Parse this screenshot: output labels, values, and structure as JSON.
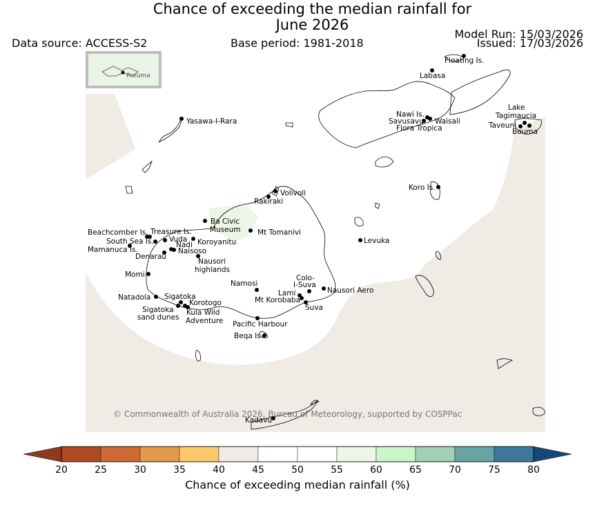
{
  "title_line1": "Chance of exceeding the median rainfall for",
  "title_line2": "June 2026",
  "data_source": "Data source: ACCESS-S2",
  "base_period": "Base period: 1981-2018",
  "model_run": "Model Run: 15/03/2026",
  "issued": "Issued: 17/03/2026",
  "inset_label": "Rotuma",
  "copyright": "© Commonwealth of Australia 2026, Bureau of Meteorology, supported by COSPPac",
  "places": [
    {
      "name": "Floating Is."
    },
    {
      "name": "Labasa"
    },
    {
      "name": "Yasawa-I-Rara"
    },
    {
      "name": "Nawi Is."
    },
    {
      "name": "Savusavu"
    },
    {
      "name": "Waisali"
    },
    {
      "name": "Flora Tropica"
    },
    {
      "name": "Lake"
    },
    {
      "name": "Tagimaucia"
    },
    {
      "name": "Taveuni"
    },
    {
      "name": "Bouma"
    },
    {
      "name": "Koro Is."
    },
    {
      "name": "Volivoli"
    },
    {
      "name": "Rakiraki"
    },
    {
      "name": "Ba Civic"
    },
    {
      "name": "Museum"
    },
    {
      "name": "Mt Tomanivi"
    },
    {
      "name": "Levuka"
    },
    {
      "name": "Beachcomber Is."
    },
    {
      "name": "Treasure Is."
    },
    {
      "name": "South Sea Is."
    },
    {
      "name": "Vuda"
    },
    {
      "name": "Koroyanitu"
    },
    {
      "name": "Mamanuca Is."
    },
    {
      "name": "Nadi"
    },
    {
      "name": "Denarau"
    },
    {
      "name": "Naisoso"
    },
    {
      "name": "Nausori"
    },
    {
      "name": "highlands"
    },
    {
      "name": "Momi"
    },
    {
      "name": "Namosi"
    },
    {
      "name": "Colo-"
    },
    {
      "name": "I-Suva"
    },
    {
      "name": "Nausori Aero"
    },
    {
      "name": "Natadola"
    },
    {
      "name": "Sigatoka"
    },
    {
      "name": "Lami"
    },
    {
      "name": "Mt Korobaba"
    },
    {
      "name": "Korotogo"
    },
    {
      "name": "Suva"
    },
    {
      "name": "Sigatoka"
    },
    {
      "name": "sand dunes"
    },
    {
      "name": "Kula Wild"
    },
    {
      "name": "Adventure"
    },
    {
      "name": "Pacific Harbour"
    },
    {
      "name": "Beqa Is."
    },
    {
      "name": "Kadavu"
    }
  ],
  "colorbar": {
    "title": "Chance of exceeding median rainfall (%)",
    "ticks": [
      "20",
      "25",
      "30",
      "35",
      "40",
      "45",
      "50",
      "55",
      "60",
      "65",
      "70",
      "75",
      "80"
    ],
    "under_color": "#8c3b1e",
    "over_color": "#15487a",
    "colors": [
      "#b04a25",
      "#cf6a35",
      "#e39a48",
      "#fdc96a",
      "#f0ebe4",
      "#ffffff",
      "#ffffff",
      "#ebf6e6",
      "#c9f6c7",
      "#9ed1b6",
      "#68a4a4",
      "#3d7799"
    ]
  },
  "map_colors": {
    "shade_40_45": "#f0ebe4",
    "shade_55_60": "#ebf6e6",
    "inset_bg": "#e9f4e7"
  }
}
